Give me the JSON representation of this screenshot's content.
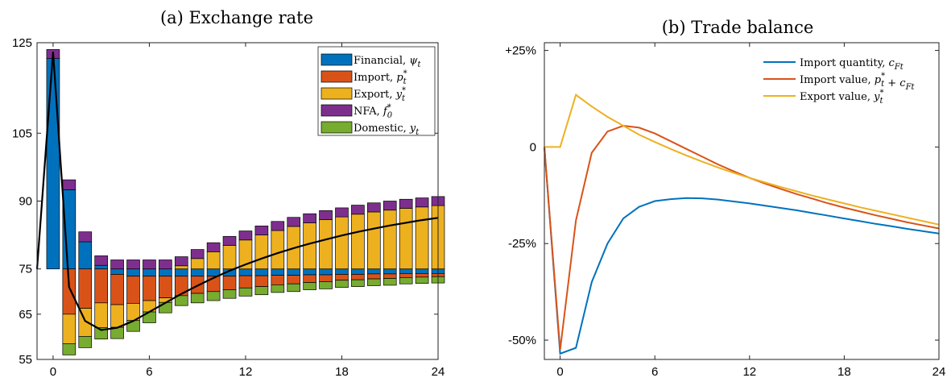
{
  "chart_data": [
    {
      "type": "bar",
      "title": "(a) Exchange rate",
      "baseline": 75,
      "ylim": [
        55,
        125
      ],
      "xlim": [
        -1,
        24
      ],
      "yticks": [
        55,
        65,
        75,
        90,
        105,
        125
      ],
      "xticks": [
        0,
        6,
        12,
        18,
        24
      ],
      "legend_position": "top-right",
      "x": [
        0,
        1,
        2,
        3,
        4,
        5,
        6,
        7,
        8,
        9,
        10,
        11,
        12,
        13,
        14,
        15,
        16,
        17,
        18,
        19,
        20,
        21,
        22,
        23,
        24
      ],
      "series": [
        {
          "key": "financial",
          "name": "Financial, ",
          "sym": "ψ",
          "sub": "t",
          "sup": "",
          "color": "#0072BD",
          "values": [
            46.5,
            17.5,
            6,
            0.8,
            -1.2,
            -1.6,
            -1.6,
            -1.6,
            -1.6,
            -1.6,
            -1.6,
            -1.6,
            -1.5,
            -1.5,
            -1.4,
            -1.4,
            -1.3,
            -1.3,
            -1.2,
            -1.2,
            -1.1,
            -1.1,
            -1.0,
            -1.0,
            -1.0
          ]
        },
        {
          "key": "import",
          "name": "Import, ",
          "sym": "p",
          "sub": "t",
          "sup": "*",
          "color": "#D95319",
          "values": [
            0,
            -10,
            -8.7,
            -7.5,
            -6.7,
            -6,
            -5.4,
            -4.8,
            -4.3,
            -3.8,
            -3.4,
            -3.0,
            -2.7,
            -2.4,
            -2.1,
            -1.9,
            -1.7,
            -1.5,
            -1.3,
            -1.2,
            -1.1,
            -1.0,
            -0.9,
            -0.8,
            -0.7
          ]
        },
        {
          "key": "export",
          "name": "Export, ",
          "sym": "y",
          "sub": "t",
          "sup": "*",
          "color": "#EDB120",
          "values": [
            0,
            -6.5,
            -6.2,
            -5.5,
            -5,
            -3.8,
            -2.5,
            -1,
            0.7,
            2.3,
            3.8,
            5.2,
            6.4,
            7.5,
            8.5,
            9.4,
            10.2,
            10.9,
            11.5,
            12.1,
            12.6,
            13.0,
            13.4,
            13.7,
            14.0
          ]
        },
        {
          "key": "nfa",
          "name": "NFA, ",
          "sym": "f",
          "sub": "0",
          "sup": "*",
          "color": "#7E2F8E",
          "values": [
            2,
            2.2,
            2.2,
            2.1,
            2,
            2,
            2,
            2,
            2,
            2,
            2,
            2,
            2,
            2,
            2,
            2,
            2,
            2,
            2,
            2,
            2,
            2,
            2,
            2,
            2
          ]
        },
        {
          "key": "domestic",
          "name": "Domestic, ",
          "sym": "y",
          "sub": "t",
          "sup": "",
          "color": "#77AC30",
          "values": [
            0,
            -2.5,
            -2.5,
            -2.5,
            -2.5,
            -2.4,
            -2.4,
            -2.3,
            -2.2,
            -2.1,
            -2.0,
            -1.9,
            -1.8,
            -1.8,
            -1.7,
            -1.7,
            -1.6,
            -1.6,
            -1.6,
            -1.5,
            -1.5,
            -1.5,
            -1.4,
            -1.4,
            -1.4
          ]
        }
      ],
      "line": {
        "color": "#000000",
        "x": [
          -1,
          0,
          1,
          2,
          3,
          4,
          5,
          6,
          7,
          8,
          9,
          10,
          11,
          12,
          13,
          14,
          15,
          16,
          17,
          18,
          19,
          20,
          21,
          22,
          23,
          24
        ],
        "values": [
          75,
          123,
          71,
          63.5,
          61.5,
          62,
          63.5,
          65.5,
          67.5,
          69.5,
          71.3,
          73,
          74.6,
          76,
          77.3,
          78.5,
          79.6,
          80.6,
          81.5,
          82.4,
          83.2,
          83.9,
          84.6,
          85.2,
          85.8,
          86.3
        ]
      }
    },
    {
      "type": "line",
      "title": "(b) Trade balance",
      "ylim": [
        -55,
        27
      ],
      "xlim": [
        -1,
        24
      ],
      "yticks": [
        -50,
        -25,
        0,
        25
      ],
      "ytick_labels": [
        "-50%",
        "-25%",
        "0",
        "+25%"
      ],
      "xticks": [
        0,
        6,
        12,
        18,
        24
      ],
      "legend_position": "top-right",
      "x": [
        -1,
        0,
        1,
        2,
        3,
        4,
        5,
        6,
        7,
        8,
        9,
        10,
        11,
        12,
        13,
        14,
        15,
        16,
        17,
        18,
        19,
        20,
        21,
        22,
        23,
        24
      ],
      "series": [
        {
          "key": "qty",
          "name": "Import quantity, ",
          "sym": "c",
          "sub": "Ft",
          "sup": "",
          "extra": "",
          "color": "#0072BD",
          "values": [
            0,
            -53.5,
            -52,
            -35,
            -25,
            -18.5,
            -15.5,
            -14,
            -13.5,
            -13.2,
            -13.3,
            -13.6,
            -14.1,
            -14.6,
            -15.2,
            -15.8,
            -16.4,
            -17.1,
            -17.8,
            -18.5,
            -19.2,
            -19.9,
            -20.5,
            -21.2,
            -21.8,
            -22.4
          ]
        },
        {
          "key": "val",
          "name": "Import value, ",
          "sym": "p",
          "sub": "t",
          "sup": "*",
          "extra": " + c",
          "extrasub": "Ft",
          "color": "#D95319",
          "values": [
            0,
            -52.5,
            -19,
            -1.5,
            4,
            5.5,
            5,
            3.5,
            1.5,
            -0.5,
            -2.5,
            -4.5,
            -6.3,
            -8,
            -9.5,
            -10.9,
            -12.2,
            -13.4,
            -14.6,
            -15.7,
            -16.7,
            -17.7,
            -18.6,
            -19.5,
            -20.3,
            -21.1
          ]
        },
        {
          "key": "exp",
          "name": "Export value, ",
          "sym": "y",
          "sub": "t",
          "sup": "*",
          "extra": "",
          "color": "#EDB120",
          "values": [
            0,
            0,
            13.5,
            10.5,
            7.8,
            5.5,
            3.2,
            1.3,
            -0.5,
            -2.2,
            -3.8,
            -5.3,
            -6.7,
            -8,
            -9.2,
            -10.4,
            -11.5,
            -12.6,
            -13.6,
            -14.6,
            -15.6,
            -16.5,
            -17.4,
            -18.3,
            -19.2,
            -20.1
          ]
        }
      ]
    }
  ]
}
